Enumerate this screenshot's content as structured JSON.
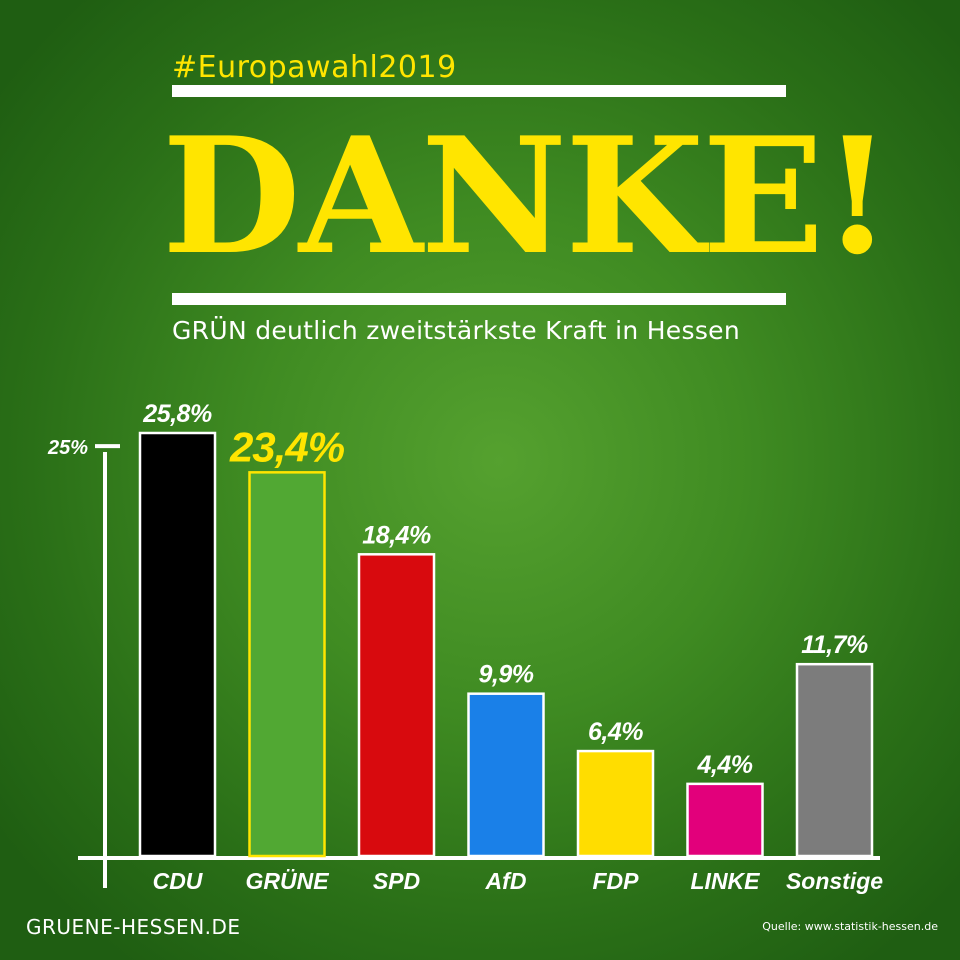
{
  "header": {
    "hashtag": "#Europawahl2019",
    "headline": "DANKE!",
    "subtitle": "GRÜN deutlich zweitstärkste Kraft in Hessen"
  },
  "footer": {
    "site": "GRUENE-HESSEN.DE",
    "source": "Quelle: www.statistik-hessen.de"
  },
  "colors": {
    "accent": "#ffe500",
    "text": "#ffffff"
  },
  "chart_data": {
    "type": "bar",
    "categories": [
      "CDU",
      "GRÜNE",
      "SPD",
      "AfD",
      "FDP",
      "LINKE",
      "Sonstige"
    ],
    "values": [
      25.8,
      23.4,
      18.4,
      9.9,
      6.4,
      4.4,
      11.7
    ],
    "value_labels": [
      "25,8%",
      "23,4%",
      "18,4%",
      "9,9%",
      "6,4%",
      "4,4%",
      "11,7%"
    ],
    "colors": [
      "#000000",
      "#51a833",
      "#d80a0e",
      "#1a80e8",
      "#ffdd00",
      "#e2007b",
      "#7c7c7c"
    ],
    "highlight_index": 1,
    "highlight_color": "#ffe500",
    "y_ticks": [
      {
        "value": 25,
        "label": "25%"
      }
    ],
    "ylim": [
      0,
      25.8
    ],
    "grid": false
  }
}
